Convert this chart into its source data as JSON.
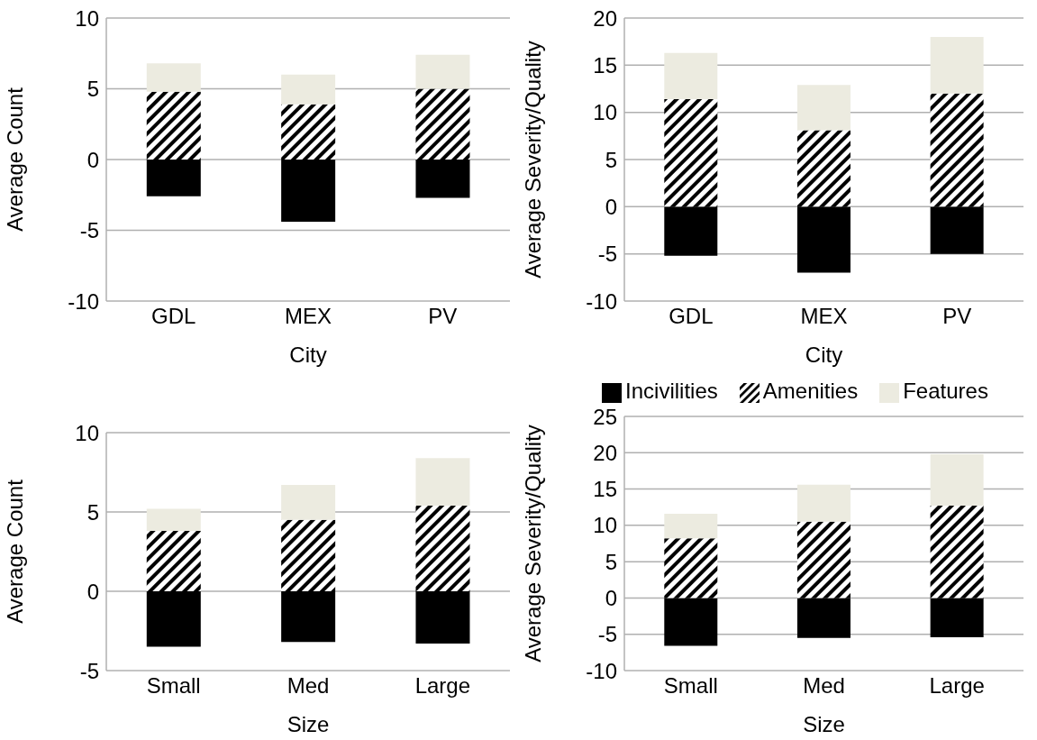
{
  "chart_data": [
    {
      "type": "bar",
      "stacked": true,
      "xlabel": "City",
      "ylabel": "Average Count",
      "categories": [
        "GDL",
        "MEX",
        "PV"
      ],
      "ylim": [
        -10,
        10
      ],
      "yticks": [
        -10,
        -5,
        0,
        5,
        10
      ],
      "grid": "y",
      "series": [
        {
          "color": "#000000",
          "values": [
            -2.6,
            -4.4,
            -2.7
          ]
        },
        {
          "color": "#000000",
          "values": [
            4.8,
            3.9,
            5.0
          ]
        },
        {
          "color": "#ecebe0",
          "values": [
            2.0,
            2.1,
            2.4
          ]
        }
      ]
    },
    {
      "type": "bar",
      "stacked": true,
      "xlabel": "City",
      "ylabel": "Average Severity/Quality",
      "categories": [
        "GDL",
        "MEX",
        "PV"
      ],
      "ylim": [
        -10,
        20
      ],
      "yticks": [
        -10,
        -5,
        0,
        5,
        10,
        15,
        20
      ],
      "grid": "y",
      "series": [
        {
          "color": "#000000",
          "values": [
            -5.2,
            -7.0,
            -5.0
          ]
        },
        {
          "color": "#000000",
          "values": [
            11.4,
            8.1,
            12.0
          ]
        },
        {
          "color": "#ecebe0",
          "values": [
            4.9,
            4.8,
            6.0
          ]
        }
      ]
    },
    {
      "type": "bar",
      "stacked": true,
      "xlabel": "Size",
      "ylabel": "Average Count",
      "categories": [
        "Small",
        "Med",
        "Large"
      ],
      "ylim": [
        -5,
        10
      ],
      "yticks": [
        -5,
        0,
        5,
        10
      ],
      "grid": "y",
      "series": [
        {
          "color": "#000000",
          "values": [
            -3.5,
            -3.2,
            -3.3
          ]
        },
        {
          "color": "#000000",
          "values": [
            3.8,
            4.5,
            5.4
          ]
        },
        {
          "color": "#ecebe0",
          "values": [
            1.4,
            2.2,
            3.0
          ]
        }
      ]
    },
    {
      "type": "bar",
      "stacked": true,
      "xlabel": "Size",
      "ylabel": "Average Severity/Quality",
      "categories": [
        "Small",
        "Med",
        "Large"
      ],
      "ylim": [
        -10,
        25
      ],
      "yticks": [
        -10,
        -5,
        0,
        5,
        10,
        15,
        20,
        25
      ],
      "grid": "y",
      "legend": "top",
      "series": [
        {
          "name": "Incivilities",
          "color": "#000000",
          "values": [
            -6.6,
            -5.5,
            -5.4
          ]
        },
        {
          "name": "Amenities",
          "color": "#000000",
          "values": [
            8.2,
            10.5,
            12.7
          ]
        },
        {
          "name": "Features",
          "color": "#ecebe0",
          "values": [
            3.4,
            5.1,
            7.1
          ]
        }
      ]
    }
  ]
}
